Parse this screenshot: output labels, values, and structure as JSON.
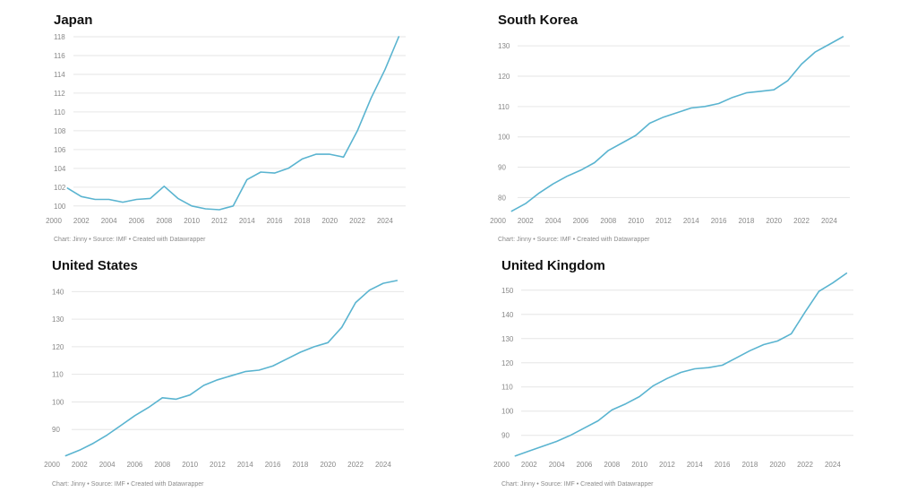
{
  "footer": "Chart: Jinny • Source: IMF • Created with Datawrapper",
  "colors": {
    "line": "#5ab4d0",
    "grid": "#e6e6e6",
    "tick": "#888888",
    "title": "#111111"
  },
  "chart_data": [
    {
      "id": "japan",
      "type": "line",
      "title": "Japan",
      "x": [
        2001,
        2002,
        2003,
        2004,
        2005,
        2006,
        2007,
        2008,
        2009,
        2010,
        2011,
        2012,
        2013,
        2014,
        2015,
        2016,
        2017,
        2018,
        2019,
        2020,
        2021,
        2022,
        2023,
        2024,
        2025
      ],
      "values": [
        101.9,
        101.0,
        100.7,
        100.7,
        100.4,
        100.7,
        100.8,
        102.1,
        100.8,
        100.0,
        99.7,
        99.6,
        100.0,
        102.8,
        103.6,
        103.5,
        104.0,
        105.0,
        105.5,
        105.5,
        105.2,
        108.0,
        111.5,
        114.5,
        118.0
      ],
      "xlim": [
        2000,
        2025.5
      ],
      "ylim": [
        99.6,
        118
      ],
      "x_ticks": [
        "2000",
        "2002",
        "2004",
        "2006",
        "2008",
        "2010",
        "2012",
        "2014",
        "2016",
        "2018",
        "2020",
        "2022",
        "2024"
      ],
      "y_ticks": [
        "100",
        "102",
        "104",
        "106",
        "108",
        "110",
        "112",
        "114",
        "116",
        "118"
      ],
      "xlabel": "",
      "ylabel": "",
      "grid": true
    },
    {
      "id": "south-korea",
      "type": "line",
      "title": "South Korea",
      "x": [
        2001,
        2002,
        2003,
        2004,
        2005,
        2006,
        2007,
        2008,
        2009,
        2010,
        2011,
        2012,
        2013,
        2014,
        2015,
        2016,
        2017,
        2018,
        2019,
        2020,
        2021,
        2022,
        2023,
        2024,
        2025
      ],
      "values": [
        75.5,
        78.0,
        81.5,
        84.5,
        87.0,
        89.0,
        91.5,
        95.5,
        98.0,
        100.5,
        104.5,
        106.5,
        108.0,
        109.5,
        110.0,
        111.0,
        113.0,
        114.5,
        115.0,
        115.5,
        118.5,
        124.0,
        128.0,
        130.5,
        133.0
      ],
      "xlim": [
        2000,
        2025.5
      ],
      "ylim": [
        74.5,
        133
      ],
      "x_ticks": [
        "2000",
        "2002",
        "2004",
        "2006",
        "2008",
        "2010",
        "2012",
        "2014",
        "2016",
        "2018",
        "2020",
        "2022",
        "2024"
      ],
      "y_ticks": [
        "80",
        "90",
        "100",
        "110",
        "120",
        "130"
      ],
      "xlabel": "",
      "ylabel": "",
      "grid": true
    },
    {
      "id": "united-states",
      "type": "line",
      "title": "United States",
      "x": [
        2001,
        2002,
        2003,
        2004,
        2005,
        2006,
        2007,
        2008,
        2009,
        2010,
        2011,
        2012,
        2013,
        2014,
        2015,
        2016,
        2017,
        2018,
        2019,
        2020,
        2021,
        2022,
        2023,
        2024,
        2025
      ],
      "values": [
        80.5,
        82.5,
        85.0,
        88.0,
        91.5,
        95.0,
        98.0,
        101.5,
        101.0,
        102.5,
        106.0,
        108.0,
        109.5,
        111.0,
        111.5,
        113.0,
        115.5,
        118.0,
        120.0,
        121.5,
        127.0,
        136.0,
        140.5,
        143.0,
        144.0
      ],
      "xlim": [
        2000,
        2025.5
      ],
      "ylim": [
        80,
        144
      ],
      "x_ticks": [
        "2000",
        "2002",
        "2004",
        "2006",
        "2008",
        "2010",
        "2012",
        "2014",
        "2016",
        "2018",
        "2020",
        "2022",
        "2024"
      ],
      "y_ticks": [
        "90",
        "100",
        "110",
        "120",
        "130",
        "140"
      ],
      "xlabel": "",
      "ylabel": "",
      "grid": true
    },
    {
      "id": "united-kingdom",
      "type": "line",
      "title": "United Kingdom",
      "x": [
        2001,
        2002,
        2003,
        2004,
        2005,
        2006,
        2007,
        2008,
        2009,
        2010,
        2011,
        2012,
        2013,
        2014,
        2015,
        2016,
        2017,
        2018,
        2019,
        2020,
        2021,
        2022,
        2023,
        2024,
        2025
      ],
      "values": [
        81.5,
        83.5,
        85.5,
        87.5,
        90.0,
        93.0,
        96.0,
        100.5,
        103.0,
        106.0,
        110.5,
        113.5,
        116.0,
        117.5,
        118.0,
        119.0,
        122.0,
        125.0,
        127.5,
        129.0,
        132.0,
        141.0,
        149.5,
        153.0,
        157.0
      ],
      "xlim": [
        2000,
        2025.5
      ],
      "ylim": [
        81,
        154
      ],
      "x_ticks": [
        "2000",
        "2002",
        "2004",
        "2006",
        "2008",
        "2010",
        "2012",
        "2014",
        "2016",
        "2018",
        "2020",
        "2022",
        "2024"
      ],
      "y_ticks": [
        "90",
        "100",
        "110",
        "120",
        "130",
        "140",
        "150"
      ],
      "xlabel": "",
      "ylabel": "",
      "grid": true
    }
  ]
}
